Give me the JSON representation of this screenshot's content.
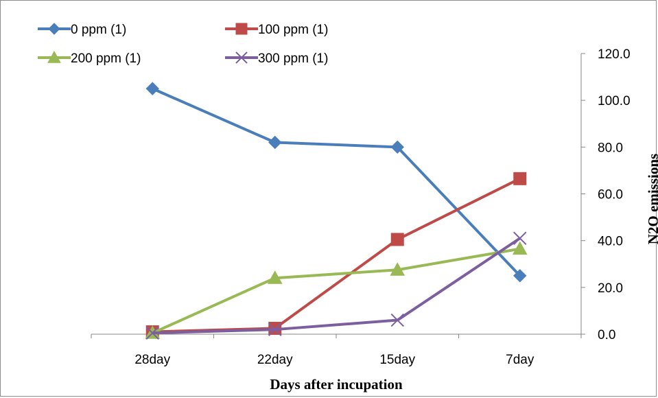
{
  "chart_data": {
    "type": "line",
    "categories": [
      "28day",
      "22day",
      "15day",
      "7day"
    ],
    "series": [
      {
        "name": "0 ppm  (1)",
        "values": [
          105.0,
          82.0,
          80.0,
          25.0
        ],
        "color": "#4a7ebb",
        "marker": "diamond"
      },
      {
        "name": "100 ppm  (1)",
        "values": [
          1.0,
          2.5,
          40.5,
          66.5
        ],
        "color": "#be4b48",
        "marker": "square"
      },
      {
        "name": "200 ppm (1)",
        "values": [
          0.5,
          24.0,
          27.5,
          36.5
        ],
        "color": "#98b954",
        "marker": "triangle"
      },
      {
        "name": "300 ppm (1)",
        "values": [
          0.5,
          2.0,
          6.0,
          41.0
        ],
        "color": "#7d5fa0",
        "marker": "x"
      }
    ],
    "y_ticks": [
      "0.0",
      "20.0",
      "40.0",
      "60.0",
      "80.0",
      "100.0",
      "120.0"
    ],
    "ylim": [
      0,
      120
    ],
    "xlabel": "Days after incupation",
    "ylabel": "N2O  emissions",
    "y_axis_position": "right",
    "legend_position": "top-left",
    "grid": false
  }
}
